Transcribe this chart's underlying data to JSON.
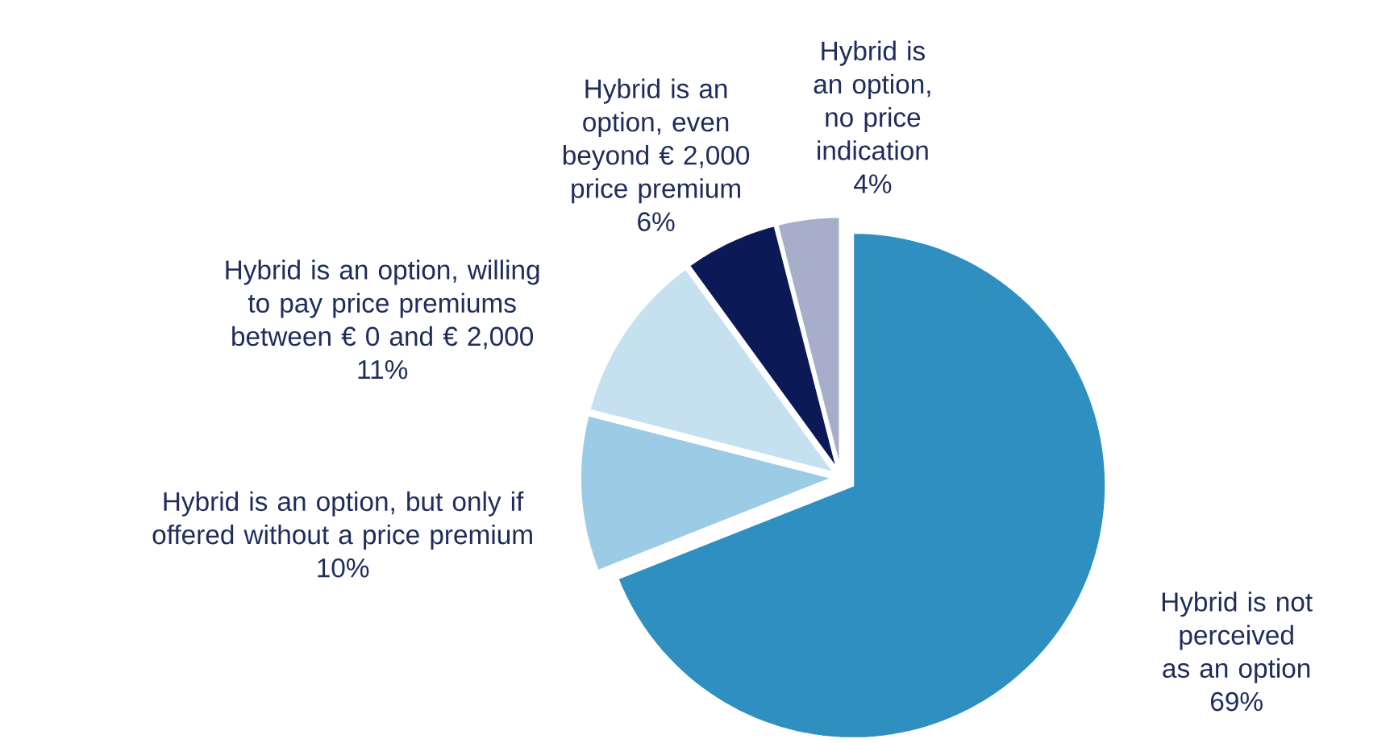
{
  "chart_data": {
    "type": "pie",
    "categories": [
      "Hybrid is not perceived as an option",
      "Hybrid is an option, but only if offered without a price premium",
      "Hybrid is an option, willing to pay price premiums between € 0 and € 2,000",
      "Hybrid is an option, even beyond € 2,000 price premium",
      "Hybrid is an option, no price indication"
    ],
    "values": [
      69,
      10,
      11,
      6,
      4
    ],
    "value_labels": [
      "69%",
      "10%",
      "11%",
      "6%",
      "4%"
    ],
    "colors": [
      "#2e8fc0",
      "#9ccbe5",
      "#c5e0ef",
      "#0b1a56",
      "#a7aec9"
    ]
  }
}
